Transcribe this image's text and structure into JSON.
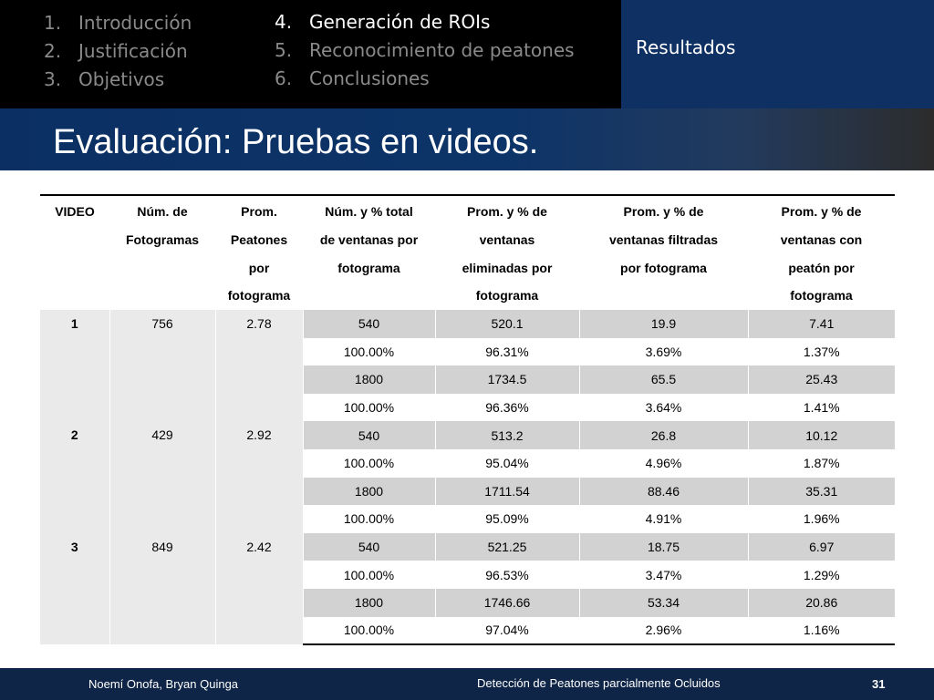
{
  "nav": {
    "col1": [
      {
        "num": "1.",
        "label": "Introducción"
      },
      {
        "num": "2.",
        "label": "Justificación"
      },
      {
        "num": "3.",
        "label": "Objetivos"
      }
    ],
    "col2": [
      {
        "num": "4.",
        "label": "Generación de ROIs",
        "active": true
      },
      {
        "num": "5.",
        "label": "Reconocimiento de peatones",
        "active": false
      },
      {
        "num": "6.",
        "label": "Conclusiones",
        "active": false
      }
    ],
    "active_section": "Resultados",
    "colors": {
      "active_bg": "#0f3062",
      "inactive_text": "#8a8a8a"
    }
  },
  "title": "Evaluación: Pruebas en videos.",
  "table": {
    "headers": [
      [
        "VIDEO"
      ],
      [
        "Núm. de",
        "Fotogramas"
      ],
      [
        "Prom.",
        "Peatones",
        "por",
        "fotograma"
      ],
      [
        "Núm. y % total",
        "de ventanas por",
        "fotograma"
      ],
      [
        "Prom. y % de",
        "ventanas",
        "eliminadas por",
        "fotograma"
      ],
      [
        "Prom. y % de",
        "ventanas filtradas",
        "por fotograma"
      ],
      [
        "Prom. y % de",
        "ventanas con",
        "peatón por",
        "fotograma"
      ]
    ],
    "groups": [
      {
        "video": "1",
        "frames": "756",
        "avg_pedestrians": "2.78",
        "rows": [
          [
            "540",
            "520.1",
            "19.9",
            "7.41"
          ],
          [
            "100.00%",
            "96.31%",
            "3.69%",
            "1.37%"
          ],
          [
            "1800",
            "1734.5",
            "65.5",
            "25.43"
          ],
          [
            "100.00%",
            "96.36%",
            "3.64%",
            "1.41%"
          ]
        ]
      },
      {
        "video": "2",
        "frames": "429",
        "avg_pedestrians": "2.92",
        "rows": [
          [
            "540",
            "513.2",
            "26.8",
            "10.12"
          ],
          [
            "100.00%",
            "95.04%",
            "4.96%",
            "1.87%"
          ],
          [
            "1800",
            "1711.54",
            "88.46",
            "35.31"
          ],
          [
            "100.00%",
            "95.09%",
            "4.91%",
            "1.96%"
          ]
        ]
      },
      {
        "video": "3",
        "frames": "849",
        "avg_pedestrians": "2.42",
        "rows": [
          [
            "540",
            "521.25",
            "18.75",
            "6.97"
          ],
          [
            "100.00%",
            "96.53%",
            "3.47%",
            "1.29%"
          ],
          [
            "1800",
            "1746.66",
            "53.34",
            "20.86"
          ],
          [
            "100.00%",
            "97.04%",
            "2.96%",
            "1.16%"
          ]
        ]
      }
    ]
  },
  "footer": {
    "authors": "Noemí Onofa, Bryan Quinga",
    "presentation_title": "Detección de Peatones parcialmente Ocluidos",
    "page_number": "31"
  }
}
